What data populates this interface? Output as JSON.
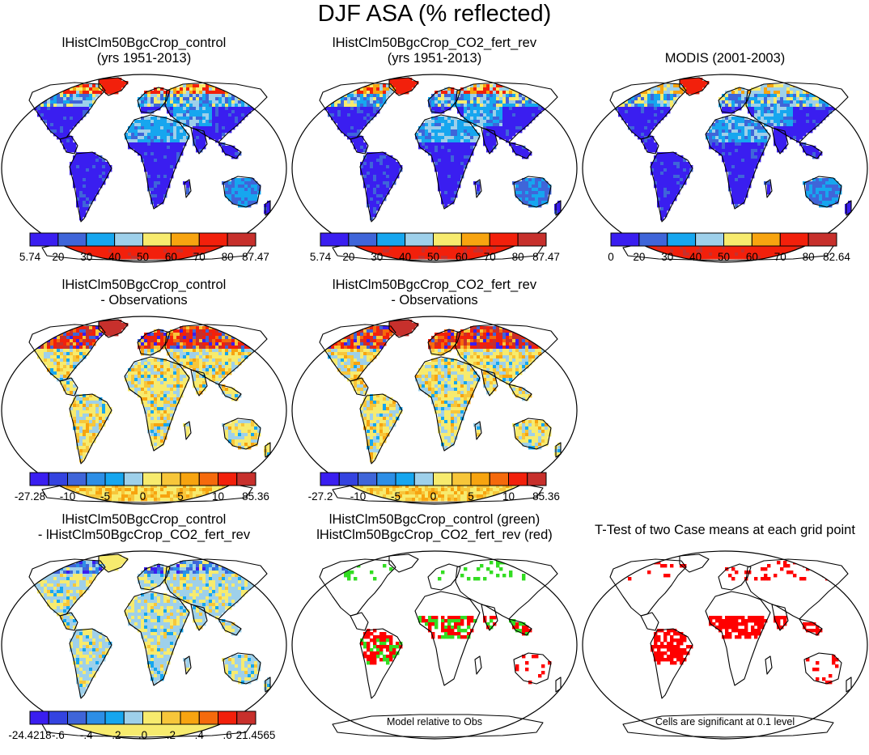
{
  "title": "DJF ASA (% reflected)",
  "panels": [
    {
      "id": "p1",
      "title": [
        "lHistClm50BgcCrop_control",
        "(yrs 1951-2013)"
      ],
      "kind": "abs",
      "colorbar": {
        "colors": [
          "#3a1ef0",
          "#3f65d9",
          "#16a6ef",
          "#9ed0ea",
          "#f7eb6e",
          "#f7a410",
          "#f2200b",
          "#c7302c"
        ],
        "labels": [
          "5.74",
          "20",
          "30",
          "40",
          "50",
          "60",
          "70",
          "80",
          "87.47"
        ]
      }
    },
    {
      "id": "p2",
      "title": [
        "lHistClm50BgcCrop_CO2_fert_rev",
        "(yrs 1951-2013)"
      ],
      "kind": "abs",
      "colorbar": {
        "colors": [
          "#3a1ef0",
          "#3f65d9",
          "#16a6ef",
          "#9ed0ea",
          "#f7eb6e",
          "#f7a410",
          "#f2200b",
          "#c7302c"
        ],
        "labels": [
          "5.74",
          "20",
          "30",
          "40",
          "50",
          "60",
          "70",
          "80",
          "87.47"
        ]
      }
    },
    {
      "id": "p3",
      "title": [
        "MODIS (2001-2003)"
      ],
      "kind": "obs",
      "colorbar": {
        "colors": [
          "#3a1ef0",
          "#3f65d9",
          "#16a6ef",
          "#9ed0ea",
          "#f7eb6e",
          "#f7a410",
          "#f2200b",
          "#c7302c"
        ],
        "labels": [
          "0",
          "20",
          "30",
          "40",
          "50",
          "60",
          "70",
          "80",
          "82.64"
        ]
      }
    },
    {
      "id": "p4",
      "title": [
        "lHistClm50BgcCrop_control",
        "- Observations"
      ],
      "kind": "bias",
      "colorbar": {
        "colors": [
          "#3a1ef0",
          "#3443e0",
          "#3f65d9",
          "#2d8ee6",
          "#16a6ef",
          "#9ed0ea",
          "#f7eb6e",
          "#f7c63a",
          "#f7a410",
          "#f56a0c",
          "#f2200b",
          "#c7302c"
        ],
        "labels": [
          "-27.28",
          "-10",
          "-5",
          "0",
          "5",
          "10",
          "85.36"
        ]
      }
    },
    {
      "id": "p5",
      "title": [
        "lHistClm50BgcCrop_CO2_fert_rev",
        "- Observations"
      ],
      "kind": "bias",
      "colorbar": {
        "colors": [
          "#3a1ef0",
          "#3443e0",
          "#3f65d9",
          "#2d8ee6",
          "#16a6ef",
          "#9ed0ea",
          "#f7eb6e",
          "#f7c63a",
          "#f7a410",
          "#f56a0c",
          "#f2200b",
          "#c7302c"
        ],
        "labels": [
          "-27.2",
          "-10",
          "-5",
          "0",
          "5",
          "10",
          "85.36"
        ]
      }
    },
    {
      "id": "p6",
      "title": [
        "lHistClm50BgcCrop_control",
        "- lHistClm50BgcCrop_CO2_fert_rev"
      ],
      "kind": "diff",
      "colorbar": {
        "colors": [
          "#3a1ef0",
          "#3443e0",
          "#3f65d9",
          "#2d8ee6",
          "#16a6ef",
          "#9ed0ea",
          "#f7eb6e",
          "#f7c63a",
          "#f7a410",
          "#f56a0c",
          "#f2200b",
          "#c7302c"
        ],
        "labels": [
          "-24.4218",
          "-.6",
          "-.4",
          "-.2",
          ".0",
          ".2",
          ".4",
          ".6",
          "21.4565"
        ]
      }
    },
    {
      "id": "p7",
      "title": [
        "lHistClm50BgcCrop_control (green)",
        "lHistClm50BgcCrop_CO2_fert_rev (red)"
      ],
      "kind": "best",
      "note": "Model relative to Obs"
    },
    {
      "id": "p8",
      "title": [
        "T-Test of two Case means at each grid point"
      ],
      "kind": "ttest",
      "note": "Cells are significant at 0.1 level"
    }
  ]
}
